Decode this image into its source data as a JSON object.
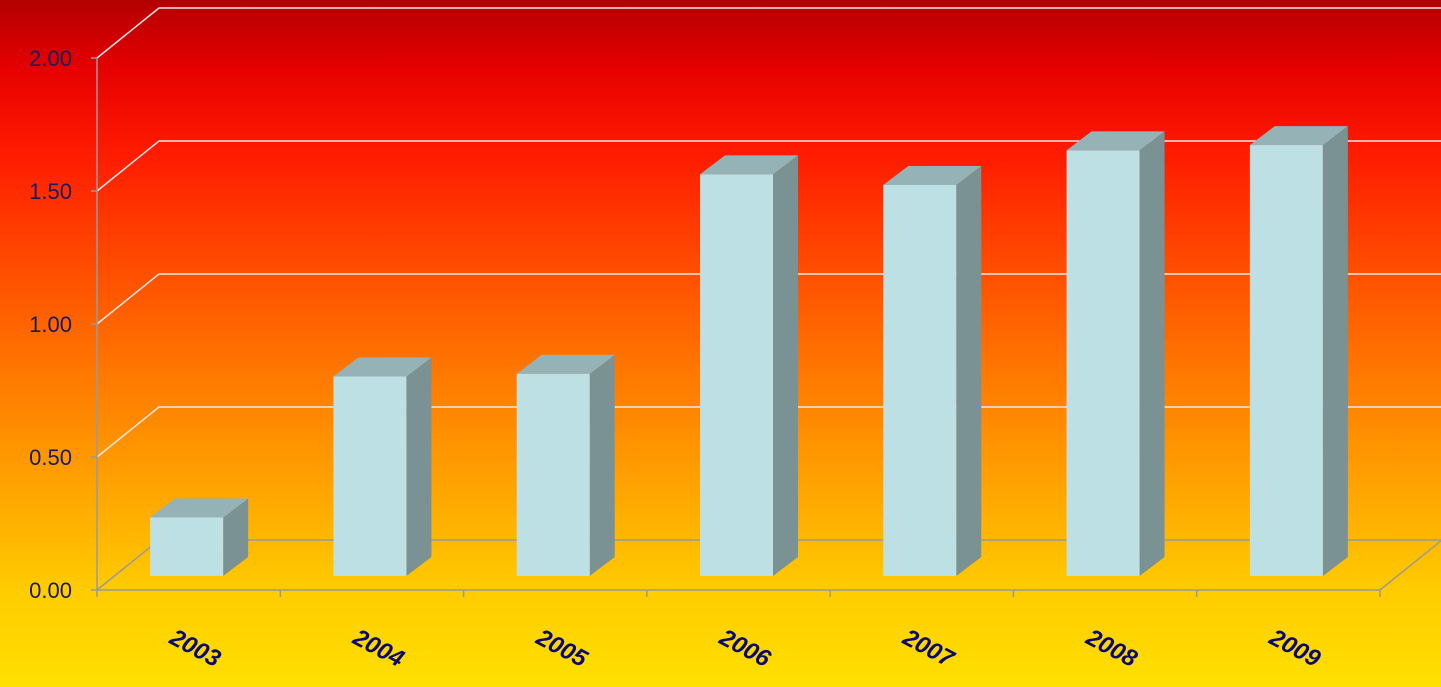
{
  "chart_data": {
    "type": "bar",
    "style": "3d-column",
    "title": "",
    "xlabel": "",
    "ylabel": "",
    "categories": [
      "2003",
      "2004",
      "2005",
      "2006",
      "2007",
      "2008",
      "2009"
    ],
    "values": [
      0.22,
      0.75,
      0.76,
      1.51,
      1.47,
      1.6,
      1.62
    ],
    "ylim": [
      0,
      2
    ],
    "yticks": [
      "0.00",
      "0.50",
      "1.00",
      "1.50",
      "2.00"
    ],
    "grid": true,
    "legend": "none",
    "colors": {
      "bar_front": "#bce0e4",
      "bar_top": "#95b3b6",
      "bar_side": "#7a9294",
      "gridline": "#e8e8e8",
      "axis": "#9a9a9a",
      "tick_text": "#1a1a5e",
      "category_text": "#0a0a6e",
      "background_top": "#b30000",
      "background_bottom": "#ffe000"
    }
  }
}
